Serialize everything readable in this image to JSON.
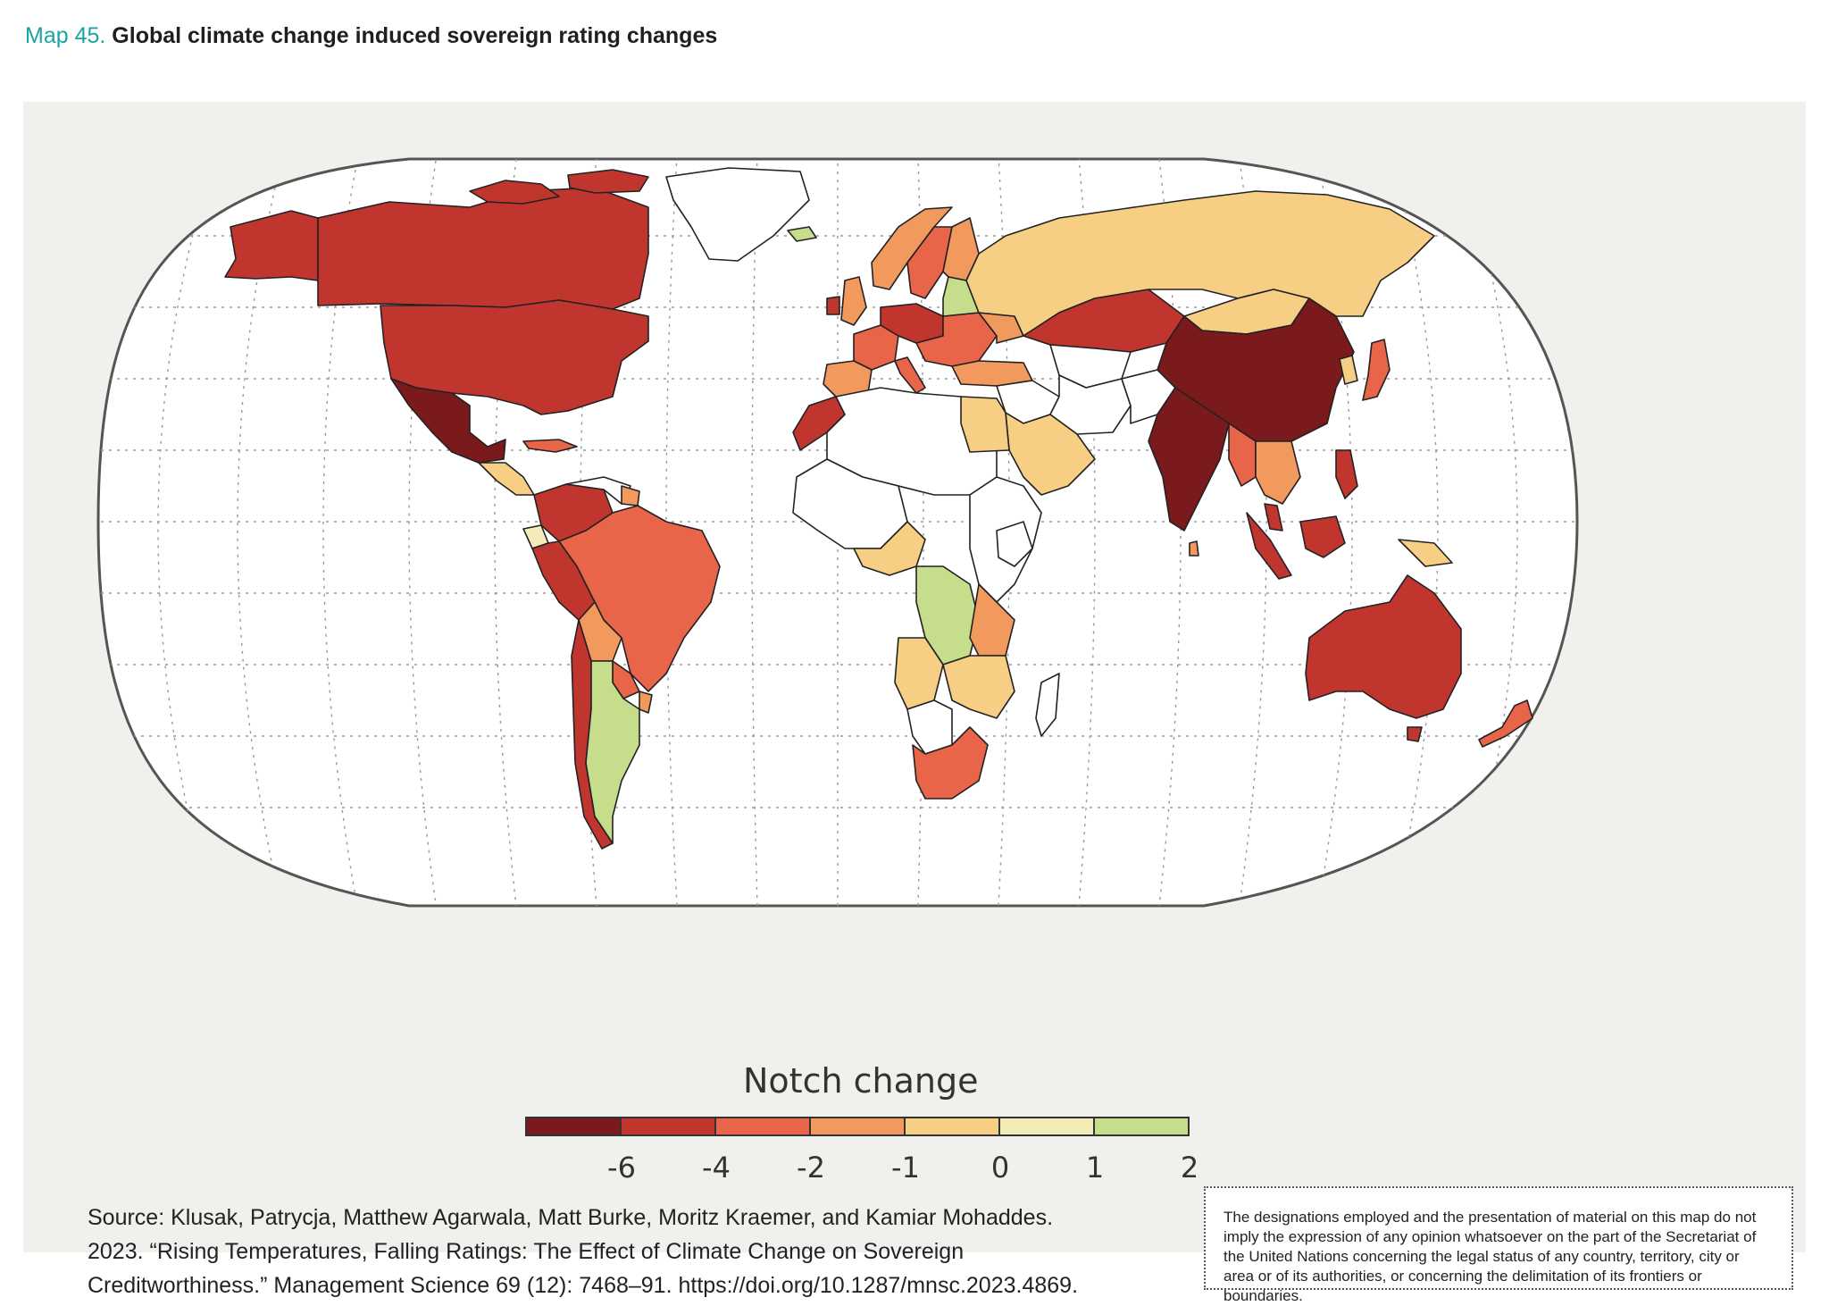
{
  "header": {
    "map_number": "Map 45.",
    "title": "Global climate change induced sovereign rating changes"
  },
  "legend": {
    "title": "Notch change",
    "ticks": [
      "-6",
      "-4",
      "-2",
      "-1",
      "0",
      "1",
      "2"
    ],
    "colors": [
      "#7a1a1c",
      "#c0362f",
      "#e8654a",
      "#f29a5e",
      "#f6cf85",
      "#f3ecb8",
      "#c6dd8c"
    ]
  },
  "source": {
    "text": "Source: Klusak, Patrycja, Matthew Agarwala, Matt Burke, Moritz Kraemer, and Kamiar Mohaddes. 2023. “Rising Temperatures, Falling Ratings: The Effect of Climate Change on Sovereign Creditworthiness.” Management Science 69 (12): 7468–91. https://doi.org/10.1287/mnsc.2023.4869."
  },
  "disclaimer": {
    "text": "The designations employed and the presentation of material on this map do not imply the expression of any opinion whatsoever on the part of the Secretariat of the United Nations concerning the legal status of any country, territory, city or area or of its authorities, or concerning the delimitation of its frontiers or boundaries."
  },
  "colors": {
    "title_accent": "#1aa3a3",
    "panel_background": "#f0f0ec",
    "ocean": "#ffffff",
    "no_data": "#ffffff"
  }
}
